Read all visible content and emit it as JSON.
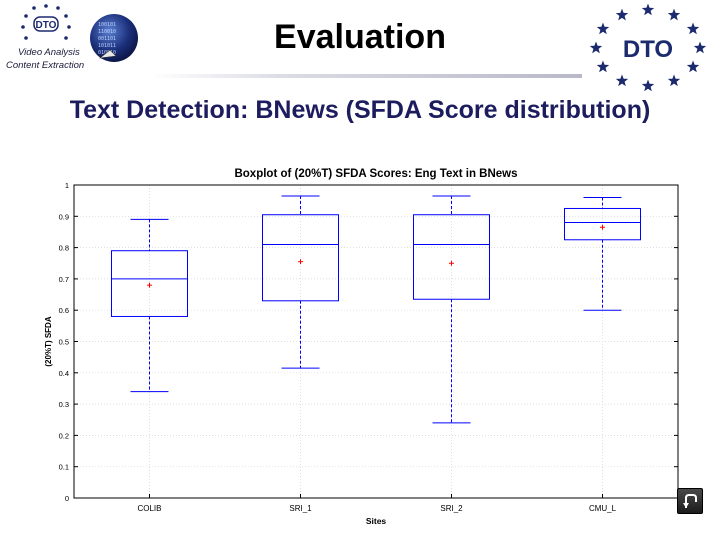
{
  "header": {
    "title": "Evaluation",
    "left_logo": {
      "text": "DTO",
      "tagline_line1": "Video Analysis",
      "tagline_line2": "Content Extraction",
      "binary_text": [
        "100101",
        "110010",
        "001101",
        "101011",
        "010010"
      ]
    },
    "right_logo": {
      "text": "DTO"
    }
  },
  "subtitle": "Text Detection: BNews  (SFDA Score distribution)",
  "colors": {
    "box": "#0000ff",
    "median": "#0000ff",
    "mean_marker": "#ff0000",
    "subtitle": "#1c1c5e",
    "star": "#1c2a6e"
  },
  "chart_data": {
    "type": "box",
    "title": "Boxplot of (20%T) SFDA Scores: Eng Text in BNews",
    "xlabel": "Sites",
    "ylabel": "(20%T) SFDA",
    "ylim": [
      0,
      1
    ],
    "yticks": [
      "0",
      "0.1",
      "0.2",
      "0.3",
      "0.4",
      "0.5",
      "0.6",
      "0.7",
      "0.8",
      "0.9",
      "1"
    ],
    "grid": true,
    "categories": [
      "COLIB",
      "SRI_1",
      "SRI_2",
      "CMU_L"
    ],
    "boxes": [
      {
        "name": "COLIB",
        "whisker_low": 0.34,
        "q1": 0.58,
        "median": 0.7,
        "q3": 0.79,
        "whisker_high": 0.89,
        "mean": 0.68
      },
      {
        "name": "SRI_1",
        "whisker_low": 0.415,
        "q1": 0.63,
        "median": 0.81,
        "q3": 0.905,
        "whisker_high": 0.965,
        "mean": 0.755
      },
      {
        "name": "SRI_2",
        "whisker_low": 0.24,
        "q1": 0.635,
        "median": 0.81,
        "q3": 0.905,
        "whisker_high": 0.965,
        "mean": 0.75
      },
      {
        "name": "CMU_L",
        "whisker_low": 0.6,
        "q1": 0.825,
        "median": 0.88,
        "q3": 0.925,
        "whisker_high": 0.96,
        "mean": 0.865
      }
    ]
  }
}
